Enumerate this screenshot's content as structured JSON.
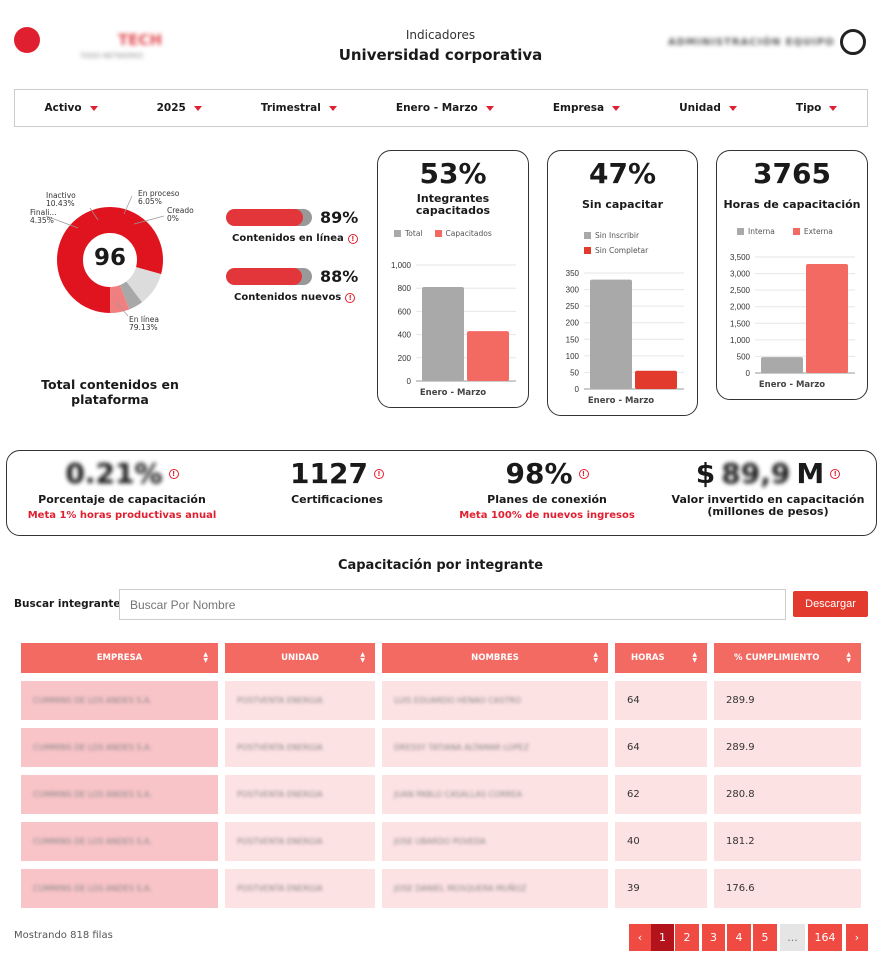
{
  "header": {
    "logo_text": "TECH",
    "logo_sub": "TODO NETWORKS",
    "subtitle": "Indicadores",
    "title": "Universidad corporativa",
    "user_name": "ADMINISTRACIÓN EQUIPO"
  },
  "filters": [
    {
      "label": "Activo"
    },
    {
      "label": "2025"
    },
    {
      "label": "Trimestral"
    },
    {
      "label": "Enero - Marzo"
    },
    {
      "label": "Empresa"
    },
    {
      "label": "Unidad"
    },
    {
      "label": "Tipo"
    }
  ],
  "donut": {
    "center_value": "96",
    "caption": "Total contenidos en plataforma",
    "labels": {
      "inactivo": "Inactivo",
      "inactivo_pct": "10.43%",
      "finali": "Finali...",
      "finali_pct": "4.35%",
      "en_proceso": "En proceso",
      "en_proceso_pct": "6.05%",
      "creado": "Creado",
      "creado_pct": "0%",
      "en_linea": "En línea",
      "en_linea_pct": "79.13%"
    }
  },
  "progress": [
    {
      "pct_text": "89%",
      "value": 0.89,
      "label": "Contenidos en línea"
    },
    {
      "pct_text": "88%",
      "value": 0.88,
      "label": "Contenidos nuevos"
    }
  ],
  "cards": {
    "integrantes": {
      "value": "53%",
      "title": "Integrantes capacitados",
      "legend": [
        "Total",
        "Capacitados"
      ],
      "x": "Enero - Marzo"
    },
    "sin_capacitar": {
      "value": "47%",
      "title": "Sin capacitar",
      "legend": [
        "Sin Inscribir",
        "Sin Completar"
      ],
      "x": "Enero - Marzo"
    },
    "horas": {
      "value": "3765",
      "title": "Horas de capacitación",
      "legend": [
        "Interna",
        "Externa"
      ],
      "x": "Enero - Marzo"
    }
  },
  "chart_data": [
    {
      "type": "bar",
      "categories": [
        "Enero - Marzo"
      ],
      "series": [
        {
          "name": "Total",
          "values": [
            810
          ]
        },
        {
          "name": "Capacitados",
          "values": [
            430
          ]
        }
      ],
      "ylim": [
        0,
        1000
      ],
      "yticks": [
        "0",
        "200",
        "400",
        "600",
        "800",
        "1,000"
      ],
      "colors": [
        "#a9a9a9",
        "#f26a62"
      ]
    },
    {
      "type": "bar",
      "categories": [
        "Enero - Marzo"
      ],
      "series": [
        {
          "name": "Sin Inscribir",
          "values": [
            330
          ]
        },
        {
          "name": "Sin Completar",
          "values": [
            55
          ]
        }
      ],
      "ylim": [
        0,
        350
      ],
      "yticks": [
        "0",
        "50",
        "100",
        "150",
        "200",
        "250",
        "300",
        "350"
      ],
      "colors": [
        "#a9a9a9",
        "#e33a2e"
      ]
    },
    {
      "type": "bar",
      "categories": [
        "Enero - Marzo"
      ],
      "series": [
        {
          "name": "Interna",
          "values": [
            480
          ]
        },
        {
          "name": "Externa",
          "values": [
            3290
          ]
        }
      ],
      "ylim": [
        0,
        3500
      ],
      "yticks": [
        "0",
        "500",
        "1,000",
        "1,500",
        "2,000",
        "2,500",
        "3,000",
        "3,500"
      ],
      "colors": [
        "#a9a9a9",
        "#f26a62"
      ]
    }
  ],
  "kpis": [
    {
      "value": "0.21%",
      "label": "Porcentaje de capacitación",
      "meta": "Meta 1% horas productivas anual"
    },
    {
      "value": "1127",
      "label": "Certificaciones",
      "meta": ""
    },
    {
      "value": "98%",
      "label": "Planes de conexión",
      "meta": "Meta 100% de nuevos ingresos"
    },
    {
      "value_prefix": "$",
      "value_hidden": "89,9",
      "value_suffix": "M",
      "label": "Valor invertido en capacitación (millones de pesos)",
      "meta": ""
    }
  ],
  "table": {
    "title": "Capacitación por integrante",
    "search_label": "Buscar integrante",
    "search_placeholder": "Buscar Por Nombre",
    "download": "Descargar",
    "headers": [
      "EMPRESA",
      "UNIDAD",
      "NOMBRES",
      "HORAS",
      "% CUMPLIMIENTO"
    ],
    "rows": [
      [
        "CUMMINS DE LOS ANDES S.A.",
        "POSTVENTA ENERGIA",
        "LUIS EDUARDO HENAO CASTRO",
        "64",
        "289.9"
      ],
      [
        "CUMMINS DE LOS ANDES S.A.",
        "POSTVENTA ENERGIA",
        "DRESSY TATIANA ALTAMAR LOPEZ",
        "64",
        "289.9"
      ],
      [
        "CUMMINS DE LOS ANDES S.A.",
        "POSTVENTA ENERGIA",
        "JUAN PABLO CASALLAS CORREA",
        "62",
        "280.8"
      ],
      [
        "CUMMINS DE LOS ANDES S.A.",
        "POSTVENTA ENERGIA",
        "JOSE UBARDO POVEDA",
        "40",
        "181.2"
      ],
      [
        "CUMMINS DE LOS ANDES S.A.",
        "POSTVENTA ENERGIA",
        "JOSE DANIEL MOSQUERA MUÑOZ",
        "39",
        "176.6"
      ]
    ],
    "footer": "Mostrando 818 filas",
    "pages": [
      "‹",
      "1",
      "2",
      "3",
      "4",
      "5",
      "...",
      "164",
      "›"
    ]
  }
}
